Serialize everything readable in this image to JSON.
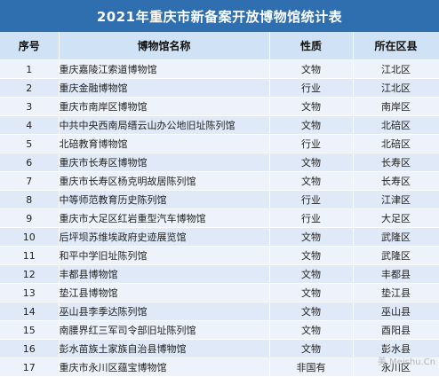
{
  "title": "2021年重庆市新备案开放博物馆统计表",
  "columns": [
    "序号",
    "博物馆名称",
    "性质",
    "所在区县"
  ],
  "rows": [
    {
      "num": "1",
      "name": "重庆嘉陵江索道博物馆",
      "nature": "文物",
      "district": "江北区"
    },
    {
      "num": "2",
      "name": "重庆金融博物馆",
      "nature": "行业",
      "district": "江北区"
    },
    {
      "num": "3",
      "name": "重庆市南岸区博物馆",
      "nature": "文物",
      "district": "南岸区"
    },
    {
      "num": "4",
      "name": "中共中央西南局缙云山办公地旧址陈列馆",
      "nature": "文物",
      "district": "北碚区"
    },
    {
      "num": "5",
      "name": "北碚教育博物馆",
      "nature": "行业",
      "district": "北碚区"
    },
    {
      "num": "6",
      "name": "重庆市长寿区博物馆",
      "nature": "文物",
      "district": "长寿区"
    },
    {
      "num": "7",
      "name": "重庆市长寿区杨克明故居陈列馆",
      "nature": "文物",
      "district": "长寿区"
    },
    {
      "num": "8",
      "name": "中等师范教育历史陈列馆",
      "nature": "行业",
      "district": "江津区"
    },
    {
      "num": "9",
      "name": "重庆市大足区红岩重型汽车博物馆",
      "nature": "行业",
      "district": "大足区"
    },
    {
      "num": "10",
      "name": "后坪坝苏维埃政府史迹展览馆",
      "nature": "文物",
      "district": "武隆区"
    },
    {
      "num": "11",
      "name": "和平中学旧址陈列馆",
      "nature": "文物",
      "district": "武隆区"
    },
    {
      "num": "12",
      "name": "丰都县博物馆",
      "nature": "文物",
      "district": "丰都县"
    },
    {
      "num": "13",
      "name": "垫江县博物馆",
      "nature": "文物",
      "district": "垫江县"
    },
    {
      "num": "14",
      "name": "巫山县李季达陈列馆",
      "nature": "文物",
      "district": "巫山县"
    },
    {
      "num": "15",
      "name": "南腰界红三军司令部旧址陈列馆",
      "nature": "文物",
      "district": "酉阳县"
    },
    {
      "num": "16",
      "name": "彭水苗族土家族自治县博物馆",
      "nature": "文物",
      "district": "彭水县"
    },
    {
      "num": "17",
      "name": "重庆市永川区蕴宝博物馆",
      "nature": "非国有",
      "district": "永川区"
    }
  ],
  "watermark": "美 Meishu.Cn"
}
